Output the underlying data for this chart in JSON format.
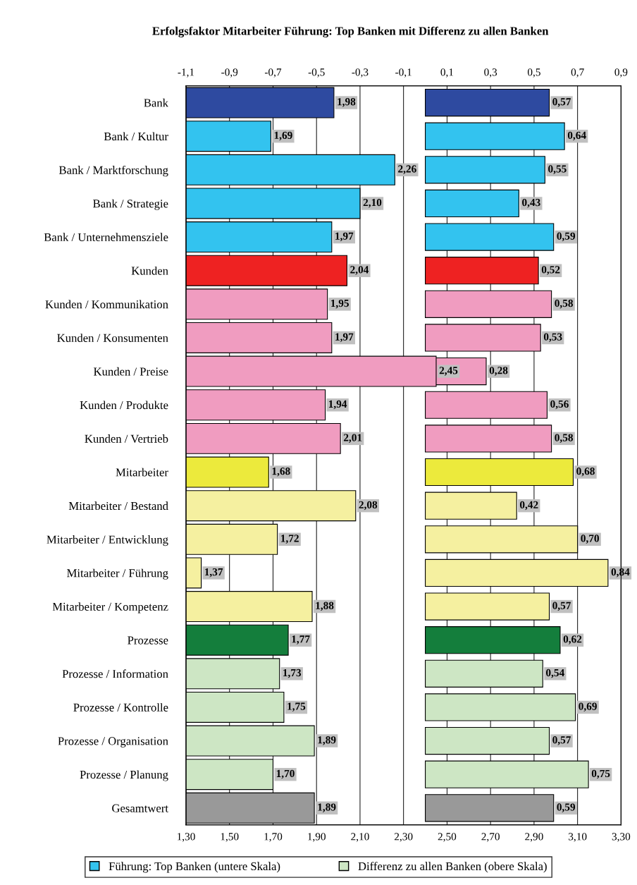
{
  "chart_data": {
    "type": "bar",
    "orientation": "horizontal",
    "title": "Erfolgsfaktor Mitarbeiter Führung: Top Banken mit Differenz zu allen Banken",
    "categories": [
      "Bank",
      "Bank / Kultur",
      "Bank / Marktforschung",
      "Bank / Strategie",
      "Bank / Unternehmensziele",
      "Kunden",
      "Kunden / Kommunikation",
      "Kunden / Konsumenten",
      "Kunden / Preise",
      "Kunden / Produkte",
      "Kunden / Vertrieb",
      "Mitarbeiter",
      "Mitarbeiter / Bestand",
      "Mitarbeiter / Entwicklung",
      "Mitarbeiter / Führung",
      "Mitarbeiter / Kompetenz",
      "Prozesse",
      "Prozesse / Information",
      "Prozesse / Kontrolle",
      "Prozesse / Organisation",
      "Prozesse / Planung",
      "Gesamtwert"
    ],
    "series": [
      {
        "name": "Führung: Top Banken (untere Skala)",
        "color": "#33c3ef",
        "values": [
          1.98,
          1.69,
          2.26,
          2.1,
          1.97,
          2.04,
          1.95,
          1.97,
          2.45,
          1.94,
          2.01,
          1.68,
          2.08,
          1.72,
          1.37,
          1.88,
          1.77,
          1.73,
          1.75,
          1.89,
          1.7,
          1.89
        ],
        "value_labels": [
          "1,98",
          "1,69",
          "2,26",
          "2,10",
          "1,97",
          "2,04",
          "1,95",
          "1,97",
          "2,45",
          "1,94",
          "2,01",
          "1,68",
          "2,08",
          "1,72",
          "1,37",
          "1,88",
          "1,77",
          "1,73",
          "1,75",
          "1,89",
          "1,70",
          "1,89"
        ],
        "colors": [
          "#2e4aa0",
          "#33c3ef",
          "#33c3ef",
          "#33c3ef",
          "#33c3ef",
          "#ee2222",
          "#f09cc0",
          "#f09cc0",
          "#f09cc0",
          "#f09cc0",
          "#f09cc0",
          "#ecea3c",
          "#f5f0a0",
          "#f5f0a0",
          "#f5f0a0",
          "#f5f0a0",
          "#147e3c",
          "#cde6c4",
          "#cde6c4",
          "#cde6c4",
          "#cde6c4",
          "#999999"
        ]
      },
      {
        "name": "Differenz zu allen Banken (obere Skala)",
        "axis": "x2",
        "color": "#cde6c4",
        "values": [
          0.57,
          0.64,
          0.55,
          0.43,
          0.59,
          0.52,
          0.58,
          0.53,
          0.28,
          0.56,
          0.58,
          0.68,
          0.42,
          0.7,
          0.84,
          0.57,
          0.62,
          0.54,
          0.69,
          0.57,
          0.75,
          0.59
        ],
        "value_labels": [
          "0,57",
          "0,64",
          "0,55",
          "0,43",
          "0,59",
          "0,52",
          "0,58",
          "0,53",
          "0,28",
          "0,56",
          "0,58",
          "0,68",
          "0,42",
          "0,70",
          "0,84",
          "0,57",
          "0,62",
          "0,54",
          "0,69",
          "0,57",
          "0,75",
          "0,59"
        ],
        "colors": [
          "#2e4aa0",
          "#33c3ef",
          "#33c3ef",
          "#33c3ef",
          "#33c3ef",
          "#ee2222",
          "#f09cc0",
          "#f09cc0",
          "#f09cc0",
          "#f09cc0",
          "#f09cc0",
          "#ecea3c",
          "#f5f0a0",
          "#f5f0a0",
          "#f5f0a0",
          "#f5f0a0",
          "#147e3c",
          "#cde6c4",
          "#cde6c4",
          "#cde6c4",
          "#cde6c4",
          "#999999"
        ]
      }
    ],
    "xlim": [
      1.3,
      3.3
    ],
    "xticks": [
      {
        "value": 1.3,
        "label": "1,30"
      },
      {
        "value": 1.5,
        "label": "1,50"
      },
      {
        "value": 1.7,
        "label": "1,70"
      },
      {
        "value": 1.9,
        "label": "1,90"
      },
      {
        "value": 2.1,
        "label": "2,10"
      },
      {
        "value": 2.3,
        "label": "2,30"
      },
      {
        "value": 2.5,
        "label": "2,50"
      },
      {
        "value": 2.7,
        "label": "2,70"
      },
      {
        "value": 2.9,
        "label": "2,90"
      },
      {
        "value": 3.1,
        "label": "3,10"
      },
      {
        "value": 3.3,
        "label": "3,30"
      }
    ],
    "x2lim": [
      -1.1,
      0.9
    ],
    "x2ticks": [
      {
        "value": -1.1,
        "label": "-1,1"
      },
      {
        "value": -0.9,
        "label": "-0,9"
      },
      {
        "value": -0.7,
        "label": "-0,7"
      },
      {
        "value": -0.5,
        "label": "-0,5"
      },
      {
        "value": -0.3,
        "label": "-0,3"
      },
      {
        "value": -0.1,
        "label": "-0,1"
      },
      {
        "value": 0.1,
        "label": "0,1"
      },
      {
        "value": 0.3,
        "label": "0,3"
      },
      {
        "value": 0.5,
        "label": "0,5"
      },
      {
        "value": 0.7,
        "label": "0,7"
      },
      {
        "value": 0.9,
        "label": "0,9"
      }
    ],
    "grid": "x",
    "legend": "bottom"
  }
}
